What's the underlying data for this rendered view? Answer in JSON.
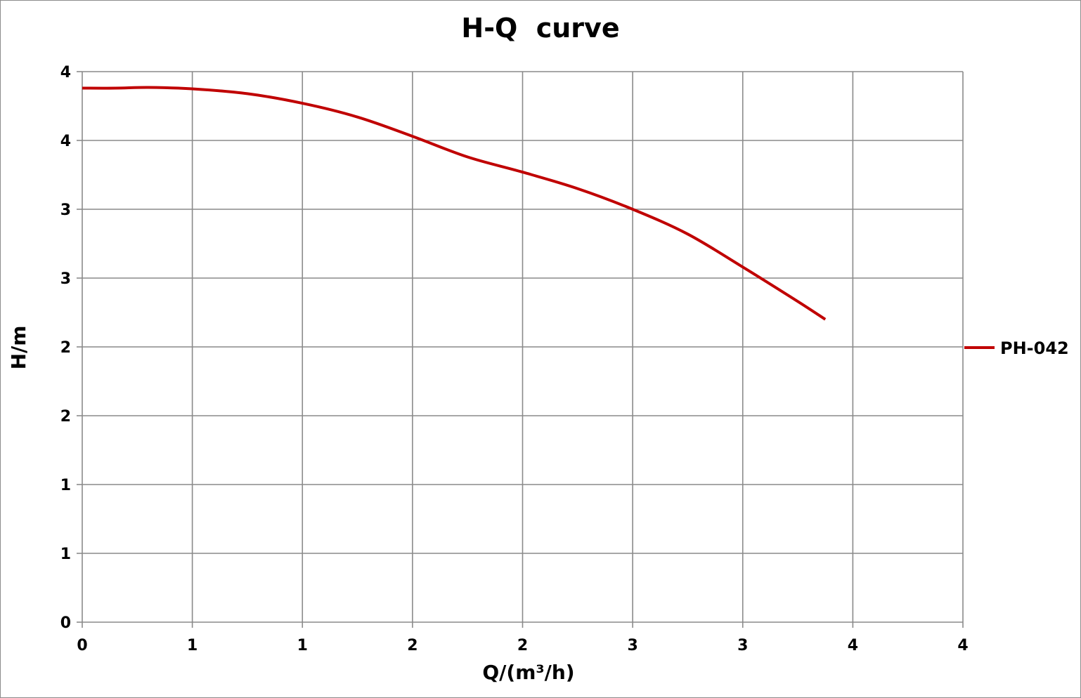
{
  "chart_data": {
    "type": "line",
    "title": "H-Q  curve",
    "xlabel": "Q/(m³/h)",
    "ylabel": "H/m",
    "xlim": [
      0,
      4
    ],
    "ylim": [
      0,
      4
    ],
    "x_ticks": [
      0,
      0.5,
      1,
      1.5,
      2,
      2.5,
      3,
      3.5,
      4
    ],
    "x_tick_labels": [
      "0",
      "1",
      "1",
      "2",
      "2",
      "3",
      "3",
      "4",
      "4"
    ],
    "y_ticks": [
      0,
      0.5,
      1,
      1.5,
      2,
      2.5,
      3,
      3.5,
      4
    ],
    "y_tick_labels": [
      "0",
      "1",
      "1",
      "2",
      "2",
      "3",
      "3",
      "4",
      "4"
    ],
    "grid": true,
    "legend_position": "right",
    "series": [
      {
        "name": "PH-042",
        "color": "#c00000",
        "x": [
          0,
          0.15,
          0.3,
          0.5,
          0.75,
          1.0,
          1.25,
          1.5,
          1.75,
          2.0,
          2.25,
          2.5,
          2.75,
          3.0,
          3.25,
          3.375
        ],
        "y": [
          3.88,
          3.88,
          3.885,
          3.875,
          3.84,
          3.77,
          3.67,
          3.53,
          3.38,
          3.27,
          3.15,
          3.0,
          2.82,
          2.58,
          2.33,
          2.2
        ]
      }
    ]
  }
}
